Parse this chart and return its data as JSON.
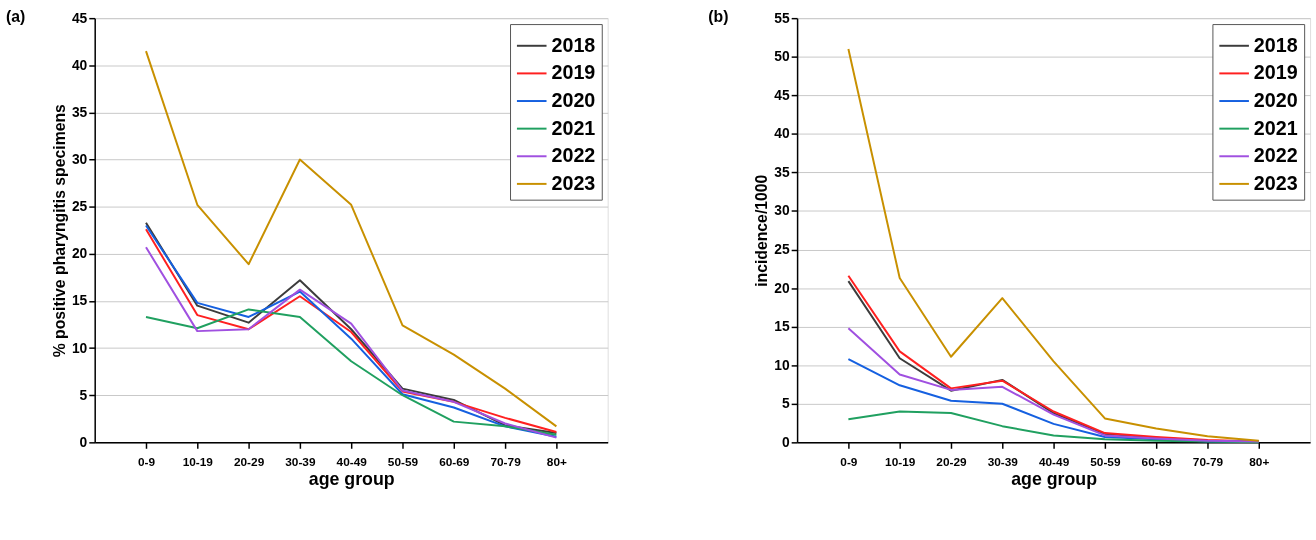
{
  "chart_data": [
    {
      "type": "line",
      "title": "(a)",
      "xlabel": "age group",
      "ylabel": "% positive pharyngitis specimens",
      "categories": [
        "0-9",
        "10-19",
        "20-29",
        "30-39",
        "40-49",
        "50-59",
        "60-69",
        "70-79",
        "80+"
      ],
      "series": [
        {
          "name": "2018",
          "color": "#3c3c3c",
          "values": [
            23.3,
            14.5,
            12.7,
            17.2,
            12.0,
            5.7,
            4.5,
            1.8,
            1.0
          ]
        },
        {
          "name": "2019",
          "color": "#ff2020",
          "values": [
            22.6,
            13.5,
            12.0,
            15.5,
            11.7,
            5.4,
            4.3,
            2.6,
            1.1
          ]
        },
        {
          "name": "2020",
          "color": "#1560e0",
          "values": [
            23.0,
            14.8,
            13.3,
            16.0,
            11.0,
            5.1,
            3.7,
            1.7,
            0.6
          ]
        },
        {
          "name": "2021",
          "color": "#20a060",
          "values": [
            13.3,
            12.1,
            14.1,
            13.3,
            8.6,
            5.0,
            2.2,
            1.7,
            0.8
          ]
        },
        {
          "name": "2022",
          "color": "#a050e0",
          "values": [
            20.7,
            11.8,
            12.0,
            16.2,
            12.6,
            5.5,
            4.3,
            2.0,
            0.5
          ]
        },
        {
          "name": "2023",
          "color": "#c89000",
          "values": [
            41.5,
            25.2,
            18.9,
            30.0,
            25.2,
            12.4,
            9.3,
            5.7,
            1.7
          ]
        }
      ],
      "ylim": [
        0,
        45
      ],
      "yticks": [
        0,
        5,
        10,
        15,
        20,
        25,
        30,
        35,
        40,
        45
      ],
      "grid": "y",
      "legend": "top right",
      "marker": "none",
      "line_style": "solid"
    },
    {
      "type": "line",
      "title": "(b)",
      "xlabel": "age group",
      "ylabel": "incidence/1000",
      "categories": [
        "0-9",
        "10-19",
        "20-29",
        "30-39",
        "40-49",
        "50-59",
        "60-69",
        "70-79",
        "80+"
      ],
      "series": [
        {
          "name": "2018",
          "color": "#3c3c3c",
          "values": [
            20.9,
            10.9,
            6.7,
            8.1,
            3.8,
            1.1,
            0.6,
            0.2,
            0.1
          ]
        },
        {
          "name": "2019",
          "color": "#ff2020",
          "values": [
            21.6,
            11.8,
            7.0,
            8.0,
            4.0,
            1.2,
            0.7,
            0.3,
            0.1
          ]
        },
        {
          "name": "2020",
          "color": "#1560e0",
          "values": [
            10.8,
            7.4,
            5.4,
            5.0,
            2.4,
            0.7,
            0.4,
            0.1,
            0.1
          ]
        },
        {
          "name": "2021",
          "color": "#20a060",
          "values": [
            3.0,
            4.0,
            3.8,
            2.1,
            0.9,
            0.4,
            0.2,
            0.1,
            0.0
          ]
        },
        {
          "name": "2022",
          "color": "#a050e0",
          "values": [
            14.8,
            8.8,
            6.8,
            7.2,
            3.6,
            0.9,
            0.5,
            0.2,
            0.1
          ]
        },
        {
          "name": "2023",
          "color": "#c89000",
          "values": [
            51.0,
            21.3,
            11.1,
            18.7,
            10.5,
            3.1,
            1.8,
            0.8,
            0.2
          ]
        }
      ],
      "ylim": [
        0,
        55
      ],
      "yticks": [
        0,
        5,
        10,
        15,
        20,
        25,
        30,
        35,
        40,
        45,
        50,
        55
      ],
      "grid": "y",
      "legend": "top right",
      "marker": "none",
      "line_style": "solid"
    }
  ]
}
